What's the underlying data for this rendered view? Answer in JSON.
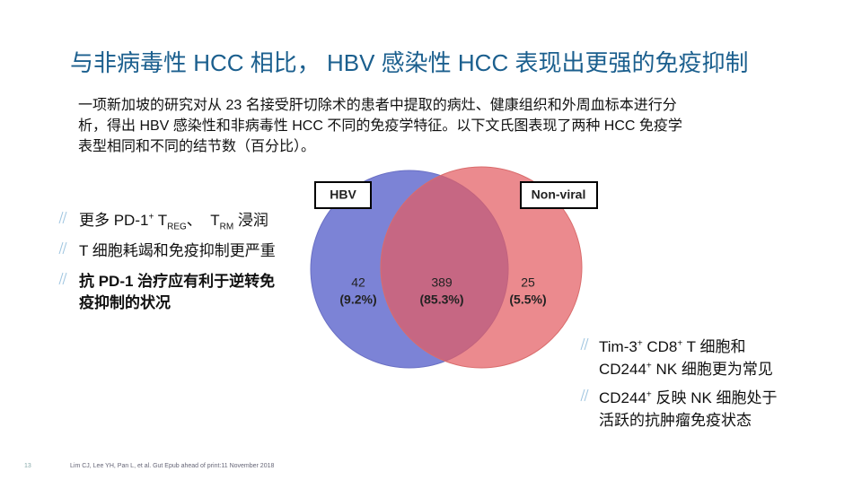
{
  "title": "与非病毒性 HCC 相比， HBV 感染性 HCC 表现出更强的免疫抑制",
  "intro": [
    "一项新加坡的研究对从 23 名接受肝切除术的患者中提取的病灶、健康组织和外周血标本进行分",
    "析，得出 HBV 感染性和非病毒性 HCC 不同的免疫学特征。以下文氏图表现了两种 HCC 免疫学",
    "表型相同和不同的结节数（百分比）。"
  ],
  "left_bullets": [
    {
      "lines": [
        [
          {
            "text": "更多 PD-1"
          },
          {
            "text": "+",
            "style": "sup"
          },
          {
            "text": " T"
          },
          {
            "text": "REG",
            "style": "sub"
          },
          {
            "text": "、  T"
          },
          {
            "text": "RM",
            "style": "sub"
          },
          {
            "text": " 浸润"
          }
        ]
      ]
    },
    {
      "lines": [
        [
          {
            "text": "T 细胞耗竭和免疫抑制更严重"
          }
        ]
      ]
    },
    {
      "bold": true,
      "lines": [
        [
          {
            "text": "抗 PD-1 治疗应有利于逆转免"
          }
        ],
        [
          {
            "text": "疫抑制的状况"
          }
        ]
      ]
    }
  ],
  "venn": {
    "left_label": "HBV",
    "right_label": "Non-viral",
    "regions": [
      {
        "count": 42,
        "percent": "(9.2%)"
      },
      {
        "count": 389,
        "percent": "(85.3%)"
      },
      {
        "count": 25,
        "percent": "(5.5%)"
      }
    ]
  },
  "right_bullets": [
    {
      "lines": [
        [
          {
            "text": "Tim-3"
          },
          {
            "text": "+",
            "style": "sup"
          },
          {
            "text": " CD8"
          },
          {
            "text": "+",
            "style": "sup"
          },
          {
            "text": " T 细胞和"
          }
        ],
        [
          {
            "text": "CD244"
          },
          {
            "text": "+",
            "style": "sup"
          },
          {
            "text": " NK 细胞更为常见"
          }
        ]
      ]
    },
    {
      "lines": [
        [
          {
            "text": "CD244"
          },
          {
            "text": "+",
            "style": "sup"
          },
          {
            "text": " 反映 NK 细胞处于"
          }
        ],
        [
          {
            "text": "活跃的抗肿瘤免疫状态"
          }
        ]
      ]
    }
  ],
  "footer": {
    "page": "13",
    "citation": "Lim CJ, Lee YH, Pan L, et al. Gut Epub ahead of print:11 November 2018"
  }
}
